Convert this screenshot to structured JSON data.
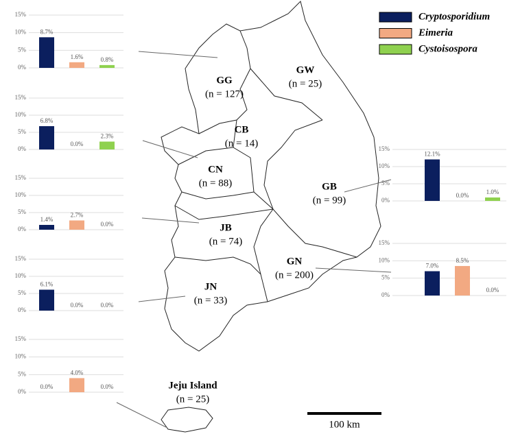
{
  "legend": [
    {
      "name": "Cryptosporidium",
      "color": "#0b1f5e"
    },
    {
      "name": "Eimeria",
      "color": "#f2a982"
    },
    {
      "name": "Cystoisospora",
      "color": "#8fd14f"
    }
  ],
  "chart_data": [
    {
      "type": "bar",
      "values": [
        8.7,
        1.6,
        0.8
      ],
      "value_labels": [
        "8.7%",
        "1.6%",
        "0.8%"
      ],
      "ylim": [
        0,
        15
      ],
      "yticks": [
        {
          "value": 0,
          "label": "0%"
        },
        {
          "value": 5,
          "label": "5%"
        },
        {
          "value": 10,
          "label": "10%"
        },
        {
          "value": 15,
          "label": "15%"
        }
      ],
      "grid": true
    },
    {
      "type": "bar",
      "values": [
        6.8,
        0.0,
        2.3
      ],
      "value_labels": [
        "6.8%",
        "0.0%",
        "2.3%"
      ],
      "ylim": [
        0,
        15
      ],
      "yticks": [
        {
          "value": 0,
          "label": "0%"
        },
        {
          "value": 5,
          "label": "5%"
        },
        {
          "value": 10,
          "label": "10%"
        },
        {
          "value": 15,
          "label": "15%"
        }
      ],
      "grid": true
    },
    {
      "type": "bar",
      "values": [
        1.4,
        2.7,
        0.0
      ],
      "value_labels": [
        "1.4%",
        "2.7%",
        "0.0%"
      ],
      "ylim": [
        0,
        15
      ],
      "yticks": [
        {
          "value": 0,
          "label": "0%"
        },
        {
          "value": 5,
          "label": "5%"
        },
        {
          "value": 10,
          "label": "10%"
        },
        {
          "value": 15,
          "label": "15%"
        }
      ],
      "grid": true
    },
    {
      "type": "bar",
      "values": [
        6.1,
        0.0,
        0.0
      ],
      "value_labels": [
        "6.1%",
        "0.0%",
        "0.0%"
      ],
      "ylim": [
        0,
        15
      ],
      "yticks": [
        {
          "value": 0,
          "label": "0%"
        },
        {
          "value": 5,
          "label": "5%"
        },
        {
          "value": 10,
          "label": "10%"
        },
        {
          "value": 15,
          "label": "15%"
        }
      ],
      "grid": true
    },
    {
      "type": "bar",
      "values": [
        0.0,
        4.0,
        0.0
      ],
      "value_labels": [
        "0.0%",
        "4.0%",
        "0.0%"
      ],
      "ylim": [
        0,
        15
      ],
      "yticks": [
        {
          "value": 0,
          "label": "0%"
        },
        {
          "value": 5,
          "label": "5%"
        },
        {
          "value": 10,
          "label": "10%"
        },
        {
          "value": 15,
          "label": "15%"
        }
      ],
      "grid": true
    },
    {
      "type": "bar",
      "values": [
        12.1,
        0.0,
        1.0
      ],
      "value_labels": [
        "12.1%",
        "0.0%",
        "1.0%"
      ],
      "ylim": [
        0,
        15
      ],
      "yticks": [
        {
          "value": 0,
          "label": "0%"
        },
        {
          "value": 5,
          "label": "5%"
        },
        {
          "value": 10,
          "label": "10%"
        },
        {
          "value": 15,
          "label": "15%"
        }
      ],
      "grid": true
    },
    {
      "type": "bar",
      "values": [
        7.0,
        8.5,
        0.0
      ],
      "value_labels": [
        "7.0%",
        "8.5%",
        "0.0%"
      ],
      "ylim": [
        0,
        15
      ],
      "yticks": [
        {
          "value": 0,
          "label": "0%"
        },
        {
          "value": 5,
          "label": "5%"
        },
        {
          "value": 10,
          "label": "10%"
        },
        {
          "value": 15,
          "label": "15%"
        }
      ],
      "grid": true
    }
  ],
  "map": {
    "regions": [
      {
        "label": "GG",
        "n": "(n = 127)"
      },
      {
        "label": "GW",
        "n": "(n = 25)"
      },
      {
        "label": "CB",
        "n": "(n = 14)"
      },
      {
        "label": "CN",
        "n": "(n = 88)"
      },
      {
        "label": "GB",
        "n": "(n = 99)"
      },
      {
        "label": "JB",
        "n": "(n = 74)"
      },
      {
        "label": "GN",
        "n": "(n = 200)"
      },
      {
        "label": "JN",
        "n": "(n = 33)"
      },
      {
        "label": "Jeju Island",
        "n": "(n = 25)"
      }
    ],
    "scale_bar": "100 km"
  }
}
